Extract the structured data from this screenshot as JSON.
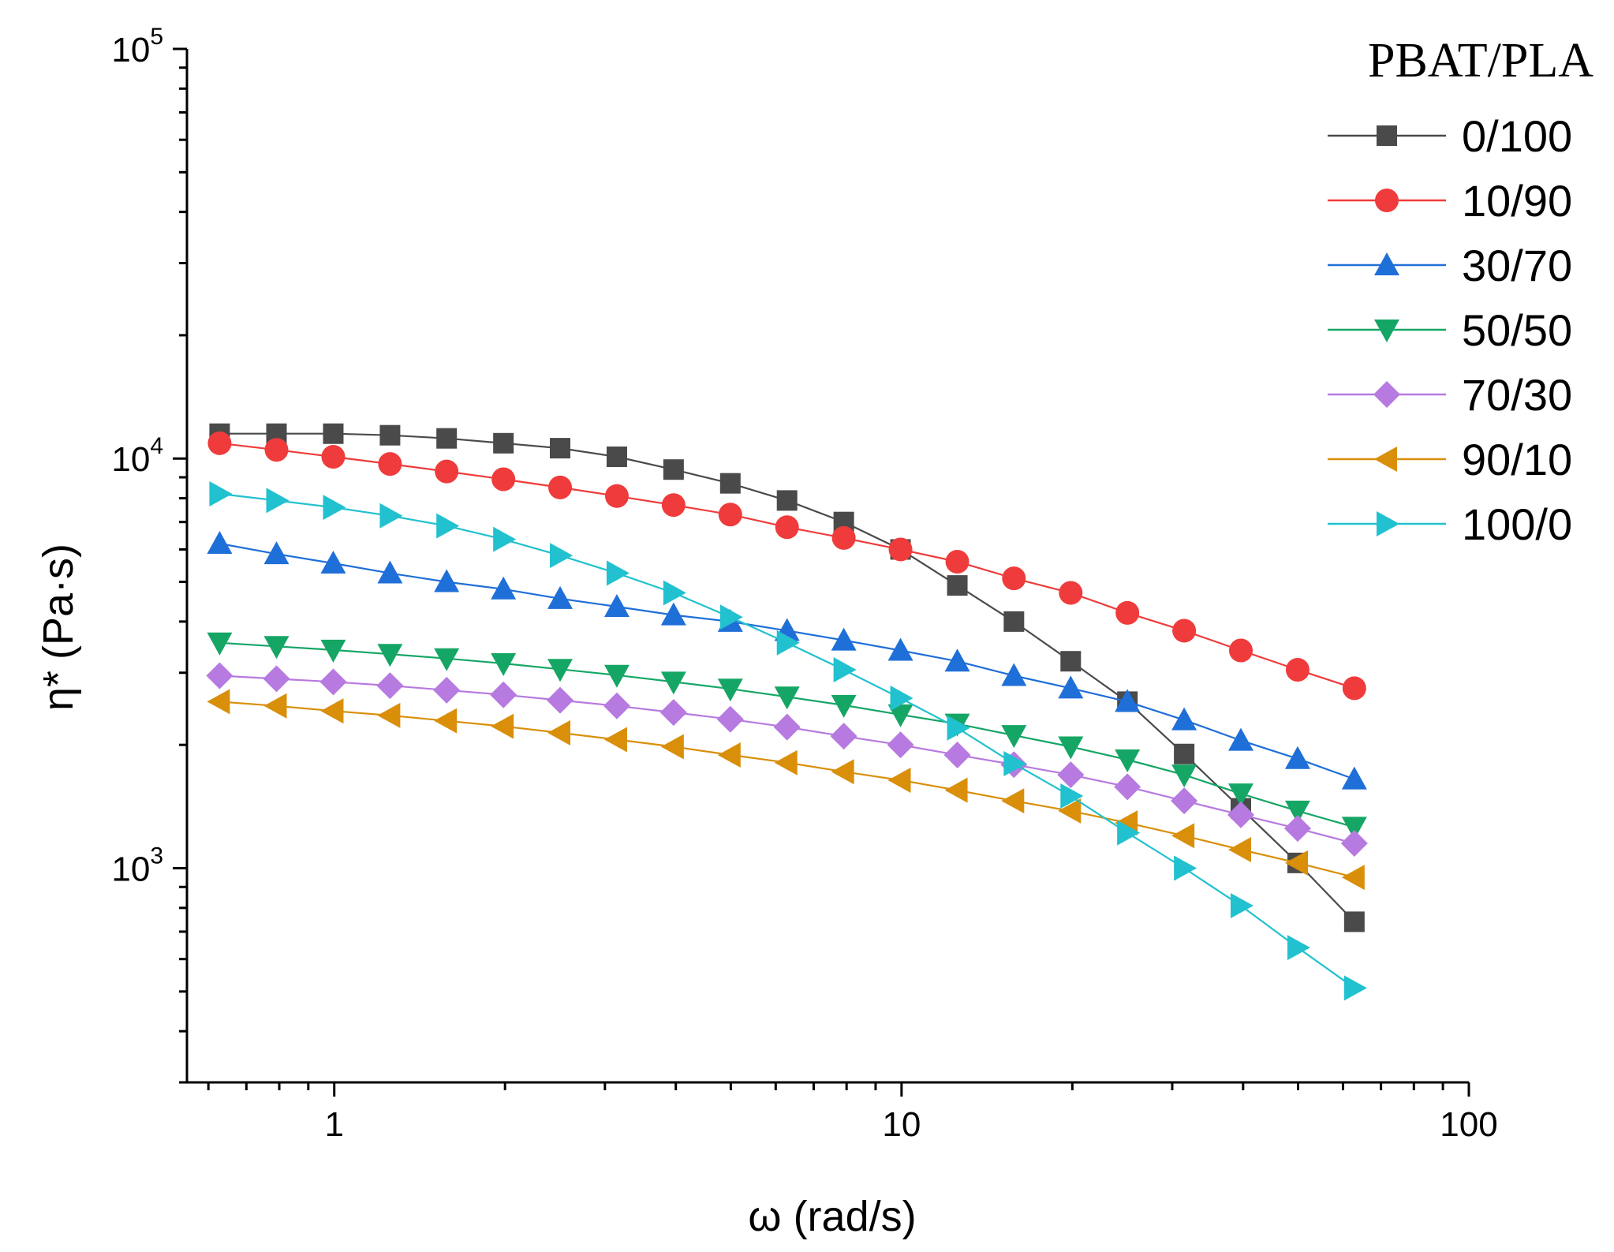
{
  "chart_data": {
    "type": "line",
    "xlabel": "ω (rad/s)",
    "ylabel_main": "η*",
    "ylabel_unit": "(Pa·s)",
    "xscale": "log",
    "yscale": "log",
    "xlim": [
      0.55,
      100
    ],
    "ylim": [
      300,
      100000
    ],
    "x_ticks": [
      {
        "value": 1,
        "label": "1"
      },
      {
        "value": 10,
        "label": "10"
      },
      {
        "value": 100,
        "label": "100"
      }
    ],
    "y_ticks": [
      {
        "value": 1000,
        "base": "10",
        "exp": "3"
      },
      {
        "value": 10000,
        "base": "10",
        "exp": "4"
      },
      {
        "value": 100000,
        "base": "10",
        "exp": "5"
      }
    ],
    "grid": false,
    "legend": {
      "title": "PBAT/PLA",
      "placement": "top-right"
    },
    "x": [
      0.628,
      0.791,
      0.996,
      1.254,
      1.578,
      1.987,
      2.501,
      3.149,
      3.964,
      4.991,
      6.283,
      7.91,
      9.958,
      12.54,
      15.78,
      19.87,
      25.01,
      31.49,
      39.64,
      49.91,
      62.83
    ],
    "series": [
      {
        "name": "0/100",
        "color": "#4a4a4a",
        "marker": "square",
        "values": [
          11500,
          11500,
          11500,
          11400,
          11200,
          10900,
          10600,
          10100,
          9400,
          8700,
          7900,
          7000,
          6000,
          4900,
          4000,
          3200,
          2550,
          1900,
          1400,
          1030,
          740
        ]
      },
      {
        "name": "10/90",
        "color": "#ef3b3b",
        "marker": "circle",
        "values": [
          10900,
          10500,
          10100,
          9700,
          9300,
          8900,
          8500,
          8100,
          7700,
          7300,
          6800,
          6400,
          6000,
          5600,
          5100,
          4700,
          4200,
          3800,
          3400,
          3050,
          2750
        ]
      },
      {
        "name": "30/70",
        "color": "#1f6fd8",
        "marker": "triangle-up",
        "values": [
          6200,
          5850,
          5550,
          5250,
          5000,
          4800,
          4550,
          4350,
          4150,
          4000,
          3800,
          3600,
          3400,
          3200,
          2950,
          2750,
          2550,
          2300,
          2050,
          1850,
          1650
        ]
      },
      {
        "name": "50/50",
        "color": "#15a665",
        "marker": "triangle-down",
        "values": [
          3550,
          3480,
          3410,
          3330,
          3250,
          3160,
          3060,
          2960,
          2850,
          2740,
          2620,
          2500,
          2370,
          2250,
          2110,
          1980,
          1840,
          1690,
          1520,
          1380,
          1260
        ]
      },
      {
        "name": "70/30",
        "color": "#b77ae0",
        "marker": "diamond",
        "values": [
          2950,
          2900,
          2850,
          2790,
          2720,
          2650,
          2570,
          2490,
          2400,
          2310,
          2210,
          2100,
          2000,
          1890,
          1790,
          1690,
          1580,
          1460,
          1350,
          1250,
          1150
        ]
      },
      {
        "name": "90/10",
        "color": "#d98f0a",
        "marker": "triangle-left",
        "values": [
          2550,
          2490,
          2420,
          2360,
          2290,
          2220,
          2140,
          2060,
          1980,
          1890,
          1810,
          1720,
          1640,
          1550,
          1460,
          1380,
          1290,
          1200,
          1110,
          1030,
          950
        ]
      },
      {
        "name": "100/0",
        "color": "#22c1cf",
        "marker": "triangle-right",
        "values": [
          8200,
          7900,
          7600,
          7250,
          6850,
          6350,
          5800,
          5250,
          4700,
          4100,
          3550,
          3050,
          2600,
          2200,
          1800,
          1500,
          1220,
          1000,
          810,
          640,
          510
        ]
      }
    ]
  }
}
